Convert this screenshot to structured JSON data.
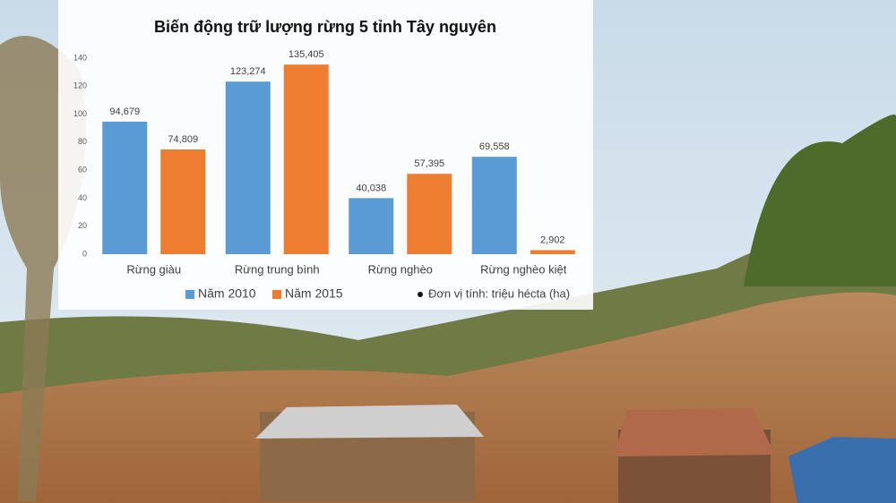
{
  "chart_data": {
    "type": "bar",
    "title": "Biến động  trữ lượng rừng 5 tỉnh Tây nguyên",
    "annotation": "Đơn vị tính: triệu hécta (ha)",
    "categories": [
      "Rừng giàu",
      "Rừng trung bình",
      "Rừng nghèo",
      "Rừng nghèo kiệt"
    ],
    "series": [
      {
        "name": "Năm 2010",
        "color": "#5b9bd5",
        "values": [
          94.679,
          123.274,
          40.038,
          69.558
        ],
        "value_labels": [
          "94,679",
          "123,274",
          "40,038",
          "69,558"
        ]
      },
      {
        "name": "Năm 2015",
        "color": "#ed7d31",
        "values": [
          74.809,
          135.405,
          57.395,
          2.902
        ],
        "value_labels": [
          "74,809",
          "135,405",
          "57,395",
          "2,902"
        ]
      }
    ],
    "ylim": [
      0,
      140
    ],
    "yticks": [
      0,
      20,
      40,
      60,
      80,
      100,
      120,
      140
    ],
    "grid": false,
    "legend": "bottom"
  }
}
